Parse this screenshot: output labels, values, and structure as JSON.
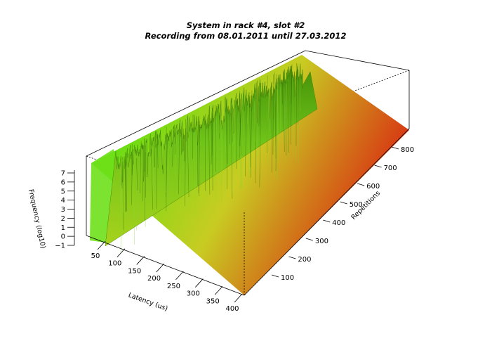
{
  "chart_data": {
    "type": "surface",
    "title": "System in rack #4, slot #2",
    "subtitle": "Recording from 08.01.2011 until 27.03.2012",
    "xlabel": "Latency (us)",
    "ylabel": "Repetitions",
    "zlabel": "Frequency (log10)",
    "x_ticks": [
      "50",
      "100",
      "150",
      "200",
      "250",
      "300",
      "350",
      "400"
    ],
    "y_ticks": [
      "100",
      "200",
      "300",
      "400",
      "500",
      "600",
      "700",
      "800"
    ],
    "z_ticks": [
      "−1",
      "0",
      "1",
      "2",
      "3",
      "4",
      "5",
      "6",
      "7"
    ],
    "xlim": [
      30,
      410
    ],
    "ylim": [
      0,
      860
    ],
    "zlim": [
      -1,
      7.5
    ],
    "color_scale": [
      "#5ee010",
      "#c8cc22",
      "#d93012"
    ],
    "grid": false
  }
}
